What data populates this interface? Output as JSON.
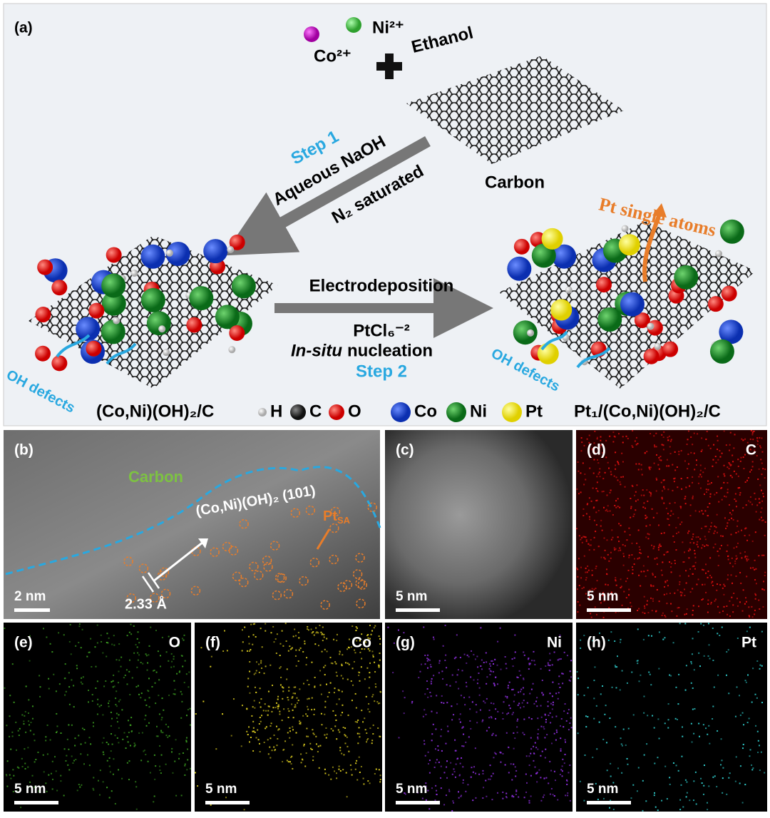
{
  "panel_a": {
    "label": "(a)",
    "ni_ion": "Ni²⁺",
    "co_ion": "Co²⁺",
    "solvent": "Ethanol",
    "support": "Carbon",
    "step1": {
      "title": "Step 1",
      "line1": "Aqueous NaOH",
      "line2": "N₂ saturated"
    },
    "step2": {
      "line1": "Electrodeposition",
      "line2": "PtCl₆⁻²",
      "italic": "In-situ",
      "line3": "nucleation",
      "title": "Step 2"
    },
    "single_atoms": "Pt single atoms",
    "left_defects": "OH defects",
    "right_defects": "OH defects",
    "left_product": "(Co,Ni)(OH)₂/C",
    "right_product": "Pt₁/(Co,Ni)(OH)₂/C",
    "legend": [
      "H",
      "C",
      "O",
      "Co",
      "Ni",
      "Pt"
    ]
  },
  "panel_b": {
    "label": "(b)",
    "carbon": "Carbon",
    "plane": "(Co,Ni)(OH)₂ (101)",
    "pt": "Pt",
    "pt_sub": "SA",
    "spacing": "2.33 Å",
    "scale": "2 nm"
  },
  "panel_c": {
    "label": "(c)",
    "scale": "5 nm"
  },
  "panel_d": {
    "label": "(d)",
    "element": "C",
    "scale": "5 nm"
  },
  "panel_e": {
    "label": "(e)",
    "element": "O",
    "scale": "5 nm"
  },
  "panel_f": {
    "label": "(f)",
    "element": "Co",
    "scale": "5 nm"
  },
  "panel_g": {
    "label": "(g)",
    "element": "Ni",
    "scale": "5 nm"
  },
  "panel_h": {
    "label": "(h)",
    "element": "Pt",
    "scale": "5 nm"
  }
}
